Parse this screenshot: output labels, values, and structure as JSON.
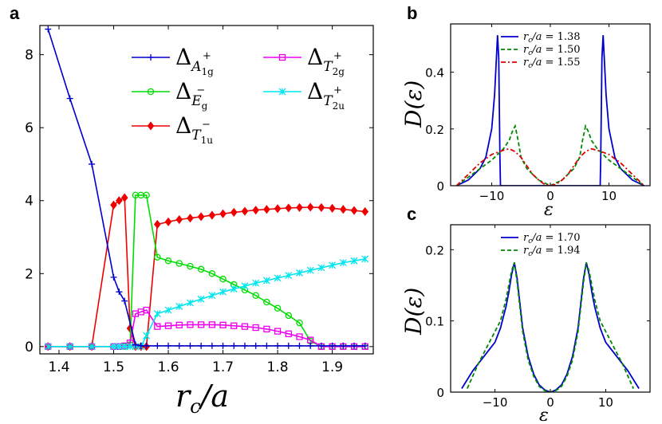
{
  "chart_data": [
    {
      "id": "a",
      "panel_label": "a",
      "type": "line",
      "xlabel": "r_c/a",
      "xlabel_parts": {
        "r": "r",
        "c": "c",
        "rest": "/a"
      },
      "ylabel": "",
      "xlim": [
        1.365,
        1.975
      ],
      "ylim": [
        -0.2,
        8.8
      ],
      "xticks": [
        1.4,
        1.5,
        1.6,
        1.7,
        1.8,
        1.9
      ],
      "xtick_labels": [
        "1.4",
        "1.5",
        "1.6",
        "1.7",
        "1.8",
        "1.9"
      ],
      "yticks": [
        0,
        2,
        4,
        6,
        8
      ],
      "ytick_labels": [
        "0",
        "2",
        "4",
        "6",
        "8"
      ],
      "legend_position": "top-right",
      "series": [
        {
          "name": "Δ_{A1g+}",
          "label_main": "Δ",
          "label_sub": "A",
          "label_subsub": "1g",
          "label_sup": "+",
          "color": "#0000cc",
          "marker": "plus",
          "x": [
            1.38,
            1.42,
            1.46,
            1.5,
            1.51,
            1.52,
            1.54,
            1.55,
            1.56,
            1.58,
            1.6,
            1.62,
            1.64,
            1.66,
            1.68,
            1.7,
            1.72,
            1.74,
            1.76,
            1.78,
            1.8,
            1.82,
            1.84,
            1.86,
            1.88,
            1.9,
            1.92,
            1.94,
            1.96
          ],
          "y": [
            8.7,
            6.8,
            5.0,
            1.9,
            1.5,
            1.25,
            0.05,
            0.02,
            0.02,
            0.02,
            0.02,
            0.02,
            0.02,
            0.02,
            0.02,
            0.02,
            0.02,
            0.02,
            0.02,
            0.02,
            0.02,
            0.02,
            0.02,
            0.02,
            0.02,
            0.02,
            0.02,
            0.02,
            0.02
          ]
        },
        {
          "name": "Δ_{Eg-}",
          "label_main": "Δ",
          "label_sub": "E",
          "label_subsub": "g",
          "label_sup": "−",
          "color": "#00dd00",
          "marker": "circle",
          "x": [
            1.38,
            1.42,
            1.46,
            1.5,
            1.51,
            1.52,
            1.53,
            1.54,
            1.55,
            1.56,
            1.58,
            1.6,
            1.62,
            1.64,
            1.66,
            1.68,
            1.7,
            1.72,
            1.74,
            1.76,
            1.78,
            1.8,
            1.82,
            1.84,
            1.86,
            1.88,
            1.9,
            1.92,
            1.94,
            1.96
          ],
          "y": [
            0.0,
            0.0,
            0.0,
            0.0,
            0.0,
            0.0,
            0.05,
            4.15,
            4.15,
            4.15,
            2.45,
            2.35,
            2.28,
            2.2,
            2.12,
            2.0,
            1.85,
            1.7,
            1.55,
            1.4,
            1.22,
            1.05,
            0.85,
            0.65,
            0.15,
            0.0,
            0.0,
            0.0,
            0.0,
            0.0
          ]
        },
        {
          "name": "Δ_{T1u-}",
          "label_main": "Δ",
          "label_sub": "T",
          "label_subsub": "1u",
          "label_sup": "−",
          "color": "#ee0000",
          "marker": "diamond",
          "x": [
            1.38,
            1.42,
            1.46,
            1.5,
            1.51,
            1.52,
            1.53,
            1.54,
            1.55,
            1.56,
            1.58,
            1.6,
            1.62,
            1.64,
            1.66,
            1.68,
            1.7,
            1.72,
            1.74,
            1.76,
            1.78,
            1.8,
            1.82,
            1.84,
            1.86,
            1.88,
            1.9,
            1.92,
            1.94,
            1.96
          ],
          "y": [
            0.0,
            0.0,
            0.0,
            3.88,
            4.0,
            4.08,
            0.5,
            0.0,
            0.0,
            0.0,
            3.35,
            3.42,
            3.48,
            3.52,
            3.56,
            3.6,
            3.64,
            3.68,
            3.71,
            3.74,
            3.76,
            3.78,
            3.8,
            3.81,
            3.82,
            3.81,
            3.79,
            3.76,
            3.73,
            3.7
          ]
        },
        {
          "name": "Δ_{T2g+}",
          "label_main": "Δ",
          "label_sub": "T",
          "label_subsub": "2g",
          "label_sup": "+",
          "color": "#ee00ee",
          "marker": "square",
          "x": [
            1.38,
            1.42,
            1.46,
            1.5,
            1.51,
            1.52,
            1.53,
            1.54,
            1.55,
            1.56,
            1.58,
            1.6,
            1.62,
            1.64,
            1.66,
            1.68,
            1.7,
            1.72,
            1.74,
            1.76,
            1.78,
            1.8,
            1.82,
            1.84,
            1.86,
            1.88,
            1.9,
            1.92,
            1.94,
            1.96
          ],
          "y": [
            0.0,
            0.0,
            0.0,
            0.0,
            0.0,
            0.02,
            0.1,
            0.9,
            0.95,
            1.0,
            0.55,
            0.57,
            0.59,
            0.6,
            0.6,
            0.6,
            0.59,
            0.57,
            0.55,
            0.52,
            0.48,
            0.42,
            0.35,
            0.27,
            0.18,
            0.0,
            0.0,
            0.0,
            0.0,
            0.0
          ]
        },
        {
          "name": "Δ_{T2u+}",
          "label_main": "Δ",
          "label_sub": "T",
          "label_subsub": "2u",
          "label_sup": "+",
          "color": "#00e5ee",
          "marker": "star",
          "x": [
            1.38,
            1.42,
            1.46,
            1.5,
            1.51,
            1.52,
            1.53,
            1.54,
            1.55,
            1.56,
            1.58,
            1.6,
            1.62,
            1.64,
            1.66,
            1.68,
            1.7,
            1.72,
            1.74,
            1.76,
            1.78,
            1.8,
            1.82,
            1.84,
            1.86,
            1.88,
            1.9,
            1.92,
            1.94,
            1.96
          ],
          "y": [
            0.0,
            0.0,
            0.0,
            0.0,
            0.0,
            0.0,
            0.0,
            0.0,
            0.0,
            0.3,
            0.9,
            1.0,
            1.1,
            1.2,
            1.3,
            1.4,
            1.5,
            1.58,
            1.66,
            1.74,
            1.81,
            1.88,
            1.95,
            2.02,
            2.09,
            2.16,
            2.23,
            2.3,
            2.35,
            2.4
          ]
        }
      ]
    },
    {
      "id": "b",
      "panel_label": "b",
      "type": "line",
      "xlabel": "ε",
      "ylabel": "D(ε)",
      "xlim": [
        -17.0,
        17.0
      ],
      "ylim": [
        0,
        0.57
      ],
      "xticks": [
        -10,
        0,
        10
      ],
      "xtick_labels": [
        "−10",
        "0",
        "10"
      ],
      "yticks": [
        0,
        0.2,
        0.4
      ],
      "ytick_labels": [
        "0",
        "0.2",
        "0.4"
      ],
      "legend_position": "top-center",
      "series": [
        {
          "name": "r_c/a = 1.38",
          "label_lhs": "r",
          "label_sub": "c",
          "label_rhs": "/a = ",
          "label_value": "1.38",
          "color": "#0000cc",
          "dash": "solid",
          "x": [
            -16,
            -14,
            -12,
            -11,
            -10,
            -9.5,
            -9.2,
            -9,
            -8.8,
            -8.6,
            -8.5,
            -8,
            -7,
            -5,
            -3,
            0,
            3,
            5,
            7,
            8,
            8.5,
            8.6,
            8.8,
            9,
            9.2,
            9.5,
            10,
            11,
            12,
            14,
            16
          ],
          "y": [
            0.0,
            0.02,
            0.06,
            0.1,
            0.2,
            0.32,
            0.45,
            0.53,
            0.45,
            0.1,
            0.0,
            0.0,
            0.0,
            0.0,
            0.0,
            0.0,
            0.0,
            0.0,
            0.0,
            0.0,
            0.0,
            0.1,
            0.45,
            0.53,
            0.45,
            0.32,
            0.2,
            0.1,
            0.06,
            0.02,
            0.0
          ]
        },
        {
          "name": "r_c/a = 1.50",
          "label_lhs": "r",
          "label_sub": "c",
          "label_rhs": "/a = ",
          "label_value": "1.50",
          "color": "#008800",
          "dash": "dashed",
          "x": [
            -16,
            -14,
            -12,
            -10,
            -8,
            -7,
            -6.5,
            -6,
            -5.5,
            -5,
            -4,
            -2,
            0,
            2,
            4,
            5,
            5.5,
            6,
            6.5,
            7,
            8,
            10,
            12,
            14,
            16
          ],
          "y": [
            0.0,
            0.03,
            0.06,
            0.09,
            0.13,
            0.16,
            0.19,
            0.21,
            0.16,
            0.1,
            0.06,
            0.02,
            0.0,
            0.02,
            0.06,
            0.1,
            0.16,
            0.21,
            0.19,
            0.16,
            0.13,
            0.09,
            0.06,
            0.03,
            0.0
          ]
        },
        {
          "name": "r_c/a = 1.55",
          "label_lhs": "r",
          "label_sub": "c",
          "label_rhs": "/a = ",
          "label_value": "1.55",
          "color": "#dd0000",
          "dash": "dashdot",
          "x": [
            -16,
            -14,
            -12,
            -10,
            -8,
            -7,
            -6,
            -5,
            -4,
            -3,
            -2,
            -1,
            0,
            1,
            2,
            3,
            4,
            5,
            6,
            7,
            8,
            10,
            12,
            14,
            16
          ],
          "y": [
            0.0,
            0.04,
            0.08,
            0.11,
            0.125,
            0.13,
            0.12,
            0.1,
            0.07,
            0.04,
            0.02,
            0.005,
            0.0,
            0.005,
            0.02,
            0.04,
            0.07,
            0.1,
            0.12,
            0.13,
            0.125,
            0.11,
            0.08,
            0.04,
            0.0
          ]
        }
      ]
    },
    {
      "id": "c",
      "panel_label": "c",
      "type": "line",
      "xlabel": "ε",
      "ylabel": "D(ε)",
      "xlim": [
        -18.0,
        18.0
      ],
      "ylim": [
        0,
        0.235
      ],
      "xticks": [
        -10,
        0,
        10
      ],
      "xtick_labels": [
        "−10",
        "0",
        "10"
      ],
      "yticks": [
        0,
        0.1,
        0.2
      ],
      "ytick_labels": [
        "0",
        "0.1",
        "0.2"
      ],
      "legend_position": "top-center",
      "series": [
        {
          "name": "r_c/a = 1.70",
          "label_lhs": "r",
          "label_sub": "c",
          "label_rhs": "/a = ",
          "label_value": "1.70",
          "color": "#0000cc",
          "dash": "solid",
          "x": [
            -16,
            -14,
            -12,
            -10,
            -9,
            -8,
            -7.5,
            -7,
            -6.5,
            -6,
            -5.5,
            -5,
            -4,
            -3,
            -2,
            -1,
            0,
            1,
            2,
            3,
            4,
            5,
            5.5,
            6,
            6.5,
            7,
            7.5,
            8,
            9,
            10,
            12,
            14,
            16
          ],
          "y": [
            0.005,
            0.03,
            0.05,
            0.07,
            0.09,
            0.12,
            0.14,
            0.165,
            0.182,
            0.16,
            0.125,
            0.09,
            0.05,
            0.025,
            0.01,
            0.003,
            0.0,
            0.003,
            0.01,
            0.025,
            0.05,
            0.09,
            0.125,
            0.16,
            0.182,
            0.165,
            0.14,
            0.12,
            0.09,
            0.07,
            0.05,
            0.03,
            0.005
          ]
        },
        {
          "name": "r_c/a = 1.94",
          "label_lhs": "r",
          "label_sub": "c",
          "label_rhs": "/a = ",
          "label_value": "1.94",
          "color": "#008800",
          "dash": "dashed",
          "x": [
            -15,
            -13,
            -11,
            -9,
            -8,
            -7.5,
            -7,
            -6.5,
            -6,
            -5.5,
            -5,
            -4,
            -3,
            -2,
            -1,
            0,
            1,
            2,
            3,
            4,
            5,
            5.5,
            6,
            6.5,
            7,
            7.5,
            8,
            9,
            11,
            13,
            15
          ],
          "y": [
            0.005,
            0.04,
            0.07,
            0.1,
            0.13,
            0.15,
            0.17,
            0.182,
            0.155,
            0.12,
            0.085,
            0.045,
            0.022,
            0.008,
            0.002,
            0.0,
            0.002,
            0.008,
            0.022,
            0.045,
            0.085,
            0.12,
            0.155,
            0.182,
            0.17,
            0.15,
            0.13,
            0.1,
            0.07,
            0.04,
            0.005
          ]
        }
      ]
    }
  ]
}
